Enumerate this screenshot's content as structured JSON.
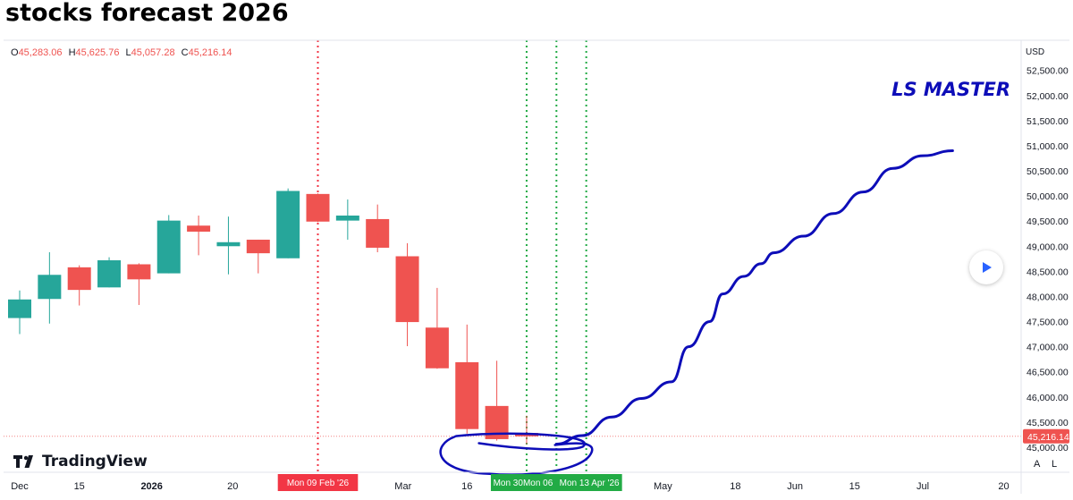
{
  "title": "stocks forecast 2026",
  "ohlc": [
    {
      "key": "O",
      "value": "45,283.06"
    },
    {
      "key": "H",
      "value": "45,625.76"
    },
    {
      "key": "L",
      "value": "45,057.28"
    },
    {
      "key": "C",
      "value": "45,216.14"
    }
  ],
  "currency": "USD",
  "watermark": "LS MASTER",
  "brand": "TradingView",
  "scale_buttons": {
    "auto": "A",
    "log": "L"
  },
  "colors": {
    "up": "#26a69a",
    "down": "#ef5350",
    "forecast": "#0d0db8",
    "red_marker": "#f23645",
    "green_marker": "#22ab45"
  },
  "chart_data": {
    "type": "candlestick",
    "interval": "weekly",
    "ylim": [
      44500,
      53100
    ],
    "y_ticks": [
      45000,
      45500,
      46000,
      46500,
      47000,
      47500,
      48000,
      48500,
      49000,
      49500,
      50000,
      50500,
      51000,
      51500,
      52000,
      52500
    ],
    "y_tick_labels": [
      "45,000.00",
      "45,500.00",
      "46,000.00",
      "46,500.00",
      "47,000.00",
      "47,500.00",
      "48,000.00",
      "48,500.00",
      "49,000.00",
      "49,500.00",
      "50,000.00",
      "50,500.00",
      "51,000.00",
      "51,500.00",
      "52,000.00",
      "52,500.00"
    ],
    "x_tick_labels": [
      {
        "label": "Dec",
        "date": "2025-12-01",
        "bold": false
      },
      {
        "label": "15",
        "date": "2025-12-15",
        "bold": false
      },
      {
        "label": "2026",
        "date": "2026-01-01",
        "bold": true
      },
      {
        "label": "20",
        "date": "2026-01-20",
        "bold": false
      },
      {
        "label": "F",
        "date": "2026-02-01",
        "bold": false
      },
      {
        "label": "Mar",
        "date": "2026-03-01",
        "bold": false
      },
      {
        "label": "16",
        "date": "2026-03-16",
        "bold": false
      },
      {
        "label": "May",
        "date": "2026-05-01",
        "bold": false
      },
      {
        "label": "18",
        "date": "2026-05-18",
        "bold": false
      },
      {
        "label": "Jun",
        "date": "2026-06-01",
        "bold": false
      },
      {
        "label": "15",
        "date": "2026-06-15",
        "bold": false
      },
      {
        "label": "Jul",
        "date": "2026-07-01",
        "bold": false
      },
      {
        "label": "20",
        "date": "2026-07-20",
        "bold": false
      }
    ],
    "candles": [
      {
        "date": "2025-12-01",
        "open": 47570,
        "high": 48120,
        "low": 47250,
        "close": 47940
      },
      {
        "date": "2025-12-08",
        "open": 47950,
        "high": 48880,
        "low": 47460,
        "close": 48430
      },
      {
        "date": "2025-12-15",
        "open": 48580,
        "high": 48620,
        "low": 47820,
        "close": 48130
      },
      {
        "date": "2025-12-22",
        "open": 48180,
        "high": 48780,
        "low": 48180,
        "close": 48720
      },
      {
        "date": "2025-12-29",
        "open": 48640,
        "high": 48660,
        "low": 47830,
        "close": 48340
      },
      {
        "date": "2026-01-05",
        "open": 48460,
        "high": 49620,
        "low": 48460,
        "close": 49510
      },
      {
        "date": "2026-01-12",
        "open": 49410,
        "high": 49610,
        "low": 48820,
        "close": 49290
      },
      {
        "date": "2026-01-19",
        "open": 49000,
        "high": 49590,
        "low": 48440,
        "close": 49080
      },
      {
        "date": "2026-01-26",
        "open": 49130,
        "high": 49130,
        "low": 48460,
        "close": 48860
      },
      {
        "date": "2026-02-02",
        "open": 48760,
        "high": 50150,
        "low": 48760,
        "close": 50100
      },
      {
        "date": "2026-02-09",
        "open": 50040,
        "high": 50050,
        "low": 49480,
        "close": 49490
      },
      {
        "date": "2026-02-16",
        "open": 49510,
        "high": 49930,
        "low": 49130,
        "close": 49610
      },
      {
        "date": "2026-02-23",
        "open": 49540,
        "high": 49830,
        "low": 48880,
        "close": 48970
      },
      {
        "date": "2026-03-02",
        "open": 48800,
        "high": 49060,
        "low": 47010,
        "close": 47490
      },
      {
        "date": "2026-03-09",
        "open": 47380,
        "high": 48170,
        "low": 46560,
        "close": 46570
      },
      {
        "date": "2026-03-16",
        "open": 46690,
        "high": 47440,
        "low": 45270,
        "close": 45360
      },
      {
        "date": "2026-03-23",
        "open": 45820,
        "high": 46720,
        "low": 45130,
        "close": 45160
      },
      {
        "date": "2026-03-30",
        "open": 45283.06,
        "high": 45625.76,
        "low": 45057.28,
        "close": 45216.14
      }
    ],
    "last_price": 45216.14,
    "last_price_label": "45,216.14",
    "vertical_markers": [
      {
        "date": "2026-02-09",
        "label": "Mon 09 Feb '26",
        "color": "red"
      },
      {
        "date": "2026-03-30",
        "label": "Mon 30",
        "color": "green"
      },
      {
        "date": "2026-04-06",
        "label": "Mon 06",
        "color": "green"
      },
      {
        "date": "2026-04-13",
        "label": "Mon 13 Apr '26",
        "color": "green"
      }
    ],
    "forecast_line": [
      {
        "date": "2026-04-06",
        "y": 45060
      },
      {
        "date": "2026-04-12",
        "y": 45230
      },
      {
        "date": "2026-04-19",
        "y": 45600
      },
      {
        "date": "2026-04-26",
        "y": 45970
      },
      {
        "date": "2026-05-03",
        "y": 46300
      },
      {
        "date": "2026-05-07",
        "y": 47000
      },
      {
        "date": "2026-05-12",
        "y": 47500
      },
      {
        "date": "2026-05-15",
        "y": 48050
      },
      {
        "date": "2026-05-20",
        "y": 48400
      },
      {
        "date": "2026-05-24",
        "y": 48650
      },
      {
        "date": "2026-05-27",
        "y": 48870
      },
      {
        "date": "2026-06-03",
        "y": 49200
      },
      {
        "date": "2026-06-10",
        "y": 49650
      },
      {
        "date": "2026-06-17",
        "y": 50080
      },
      {
        "date": "2026-06-24",
        "y": 50550
      },
      {
        "date": "2026-07-01",
        "y": 50800
      },
      {
        "date": "2026-07-08",
        "y": 50900
      }
    ]
  }
}
